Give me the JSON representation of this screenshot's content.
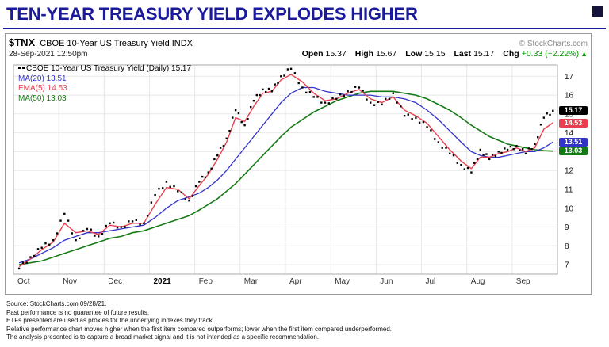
{
  "page": {
    "title": "TEN-YEAR TREASURY YIELD EXPLODES HIGHER"
  },
  "header": {
    "symbol": "$TNX",
    "name": "CBOE 10-Year US Treasury Yield INDX",
    "datetime": "28-Sep-2021 12:50pm",
    "copyright": "© StockCharts.com",
    "quote": {
      "open_label": "Open",
      "open": "15.37",
      "high_label": "High",
      "high": "15.67",
      "low_label": "Low",
      "low": "15.15",
      "last_label": "Last",
      "last": "15.17",
      "chg_label": "Chg",
      "chg": "+0.33 (+2.22%)",
      "chg_dir": "▲"
    }
  },
  "legend": {
    "main": "CBOE 10-Year US Treasury Yield (Daily) 15.17",
    "ma20": "MA(20) 13.51",
    "ema5": "EMA(5) 14.53",
    "ma50": "MA(50) 13.03"
  },
  "colors": {
    "navy": "#1a1a9c",
    "price": "#000000",
    "ema5": "#e8404e",
    "ma20": "#3333cc",
    "ma50": "#167a16",
    "up": "#009900",
    "grid": "#e8e8e8",
    "frame": "#a9a9a9"
  },
  "chart_data": {
    "type": "line",
    "title": "CBOE 10-Year US Treasury Yield (Daily)",
    "x_months": [
      "Oct",
      "Nov",
      "Dec",
      "2021",
      "Feb",
      "Mar",
      "Apr",
      "May",
      "Jun",
      "Jul",
      "Aug",
      "Sep"
    ],
    "month_start_idx": [
      0,
      4,
      8,
      12,
      16,
      21,
      26,
      30,
      34,
      38,
      42,
      47
    ],
    "n_points": 52,
    "ylim": [
      6.5,
      17.6
    ],
    "yticks": [
      7,
      8,
      9,
      10,
      11,
      12,
      13,
      14,
      15,
      16,
      17
    ],
    "grid": true,
    "legend_position": "top-left",
    "series": [
      {
        "name": "price",
        "label": "CBOE 10-Year US Treasury Yield (Daily)",
        "style": "dots",
        "color": "#000000",
        "last": 15.17,
        "values": [
          6.8,
          7.4,
          7.9,
          8.3,
          9.7,
          8.3,
          8.9,
          8.5,
          9.2,
          9.0,
          9.3,
          9.2,
          10.7,
          11.4,
          10.9,
          10.4,
          11.4,
          11.9,
          12.8,
          13.7,
          15.2,
          14.4,
          15.7,
          16.3,
          16.2,
          17.0,
          17.4,
          16.4,
          15.9,
          15.6,
          15.8,
          16.2,
          16.4,
          15.6,
          15.5,
          16.1,
          14.9,
          14.8,
          14.3,
          13.5,
          12.9,
          12.3,
          11.9,
          13.1,
          12.6,
          13.0,
          13.1,
          13.3,
          12.9,
          13.4,
          14.8,
          15.17
        ]
      },
      {
        "name": "EMA(5)",
        "label": "EMA(5)",
        "style": "line",
        "color": "#e8404e",
        "last": 14.53,
        "values": [
          6.9,
          7.3,
          7.8,
          8.2,
          9.2,
          8.7,
          8.8,
          8.6,
          9.1,
          9.0,
          9.2,
          9.2,
          10.2,
          11.1,
          11.0,
          10.5,
          11.2,
          11.8,
          12.6,
          13.5,
          14.8,
          14.6,
          15.4,
          16.1,
          16.2,
          16.8,
          17.1,
          16.7,
          16.1,
          15.7,
          15.8,
          16.1,
          16.3,
          15.8,
          15.6,
          15.9,
          15.2,
          14.9,
          14.5,
          13.8,
          13.1,
          12.5,
          12.1,
          12.7,
          12.7,
          12.9,
          13.0,
          13.2,
          13.0,
          13.2,
          14.2,
          14.53
        ]
      },
      {
        "name": "MA(20)",
        "label": "MA(20)",
        "style": "line",
        "color": "#3333cc",
        "last": 13.51,
        "values": [
          7.1,
          7.3,
          7.6,
          7.9,
          8.3,
          8.5,
          8.7,
          8.7,
          8.8,
          8.9,
          9.0,
          9.1,
          9.5,
          10.0,
          10.4,
          10.6,
          10.8,
          11.1,
          11.5,
          12.0,
          12.6,
          13.2,
          13.8,
          14.4,
          15.0,
          15.6,
          16.1,
          16.4,
          16.4,
          16.2,
          16.1,
          16.0,
          16.0,
          16.0,
          15.9,
          15.9,
          15.8,
          15.6,
          15.2,
          14.7,
          14.1,
          13.5,
          13.0,
          12.8,
          12.7,
          12.7,
          12.8,
          12.9,
          13.0,
          13.0,
          13.2,
          13.51
        ]
      },
      {
        "name": "MA(50)",
        "label": "MA(50)",
        "style": "line",
        "color": "#167a16",
        "last": 13.03,
        "values": [
          7.0,
          7.1,
          7.2,
          7.4,
          7.6,
          7.8,
          8.0,
          8.2,
          8.4,
          8.5,
          8.7,
          8.8,
          9.0,
          9.2,
          9.4,
          9.6,
          9.9,
          10.2,
          10.5,
          10.9,
          11.3,
          11.8,
          12.3,
          12.8,
          13.3,
          13.8,
          14.3,
          14.7,
          15.1,
          15.4,
          15.7,
          15.9,
          16.1,
          16.2,
          16.2,
          16.2,
          16.1,
          16.0,
          15.8,
          15.5,
          15.2,
          14.8,
          14.4,
          14.1,
          13.8,
          13.6,
          13.4,
          13.3,
          13.2,
          13.1,
          13.05,
          13.03
        ]
      }
    ],
    "axis_tags": [
      {
        "text": "15.17",
        "value": 15.17,
        "color": "#000000"
      },
      {
        "text": "14.53",
        "value": 14.53,
        "color": "#e8404e"
      },
      {
        "text": "13.51",
        "value": 13.51,
        "color": "#3333cc"
      },
      {
        "text": "13.03",
        "value": 13.03,
        "color": "#167a16"
      }
    ]
  },
  "footnotes": [
    "Source: StockCharts.com 09/28/21.",
    "Past performance is no guarantee of future results.",
    "ETFs presented are used as proxies for the underlying indexes they track.",
    "Relative performance chart moves higher when the first item compared outperforms; lower when the first item compared underperformed.",
    "The analysis presented is to capture a broad market signal and it is not intended as a specific recommendation."
  ]
}
